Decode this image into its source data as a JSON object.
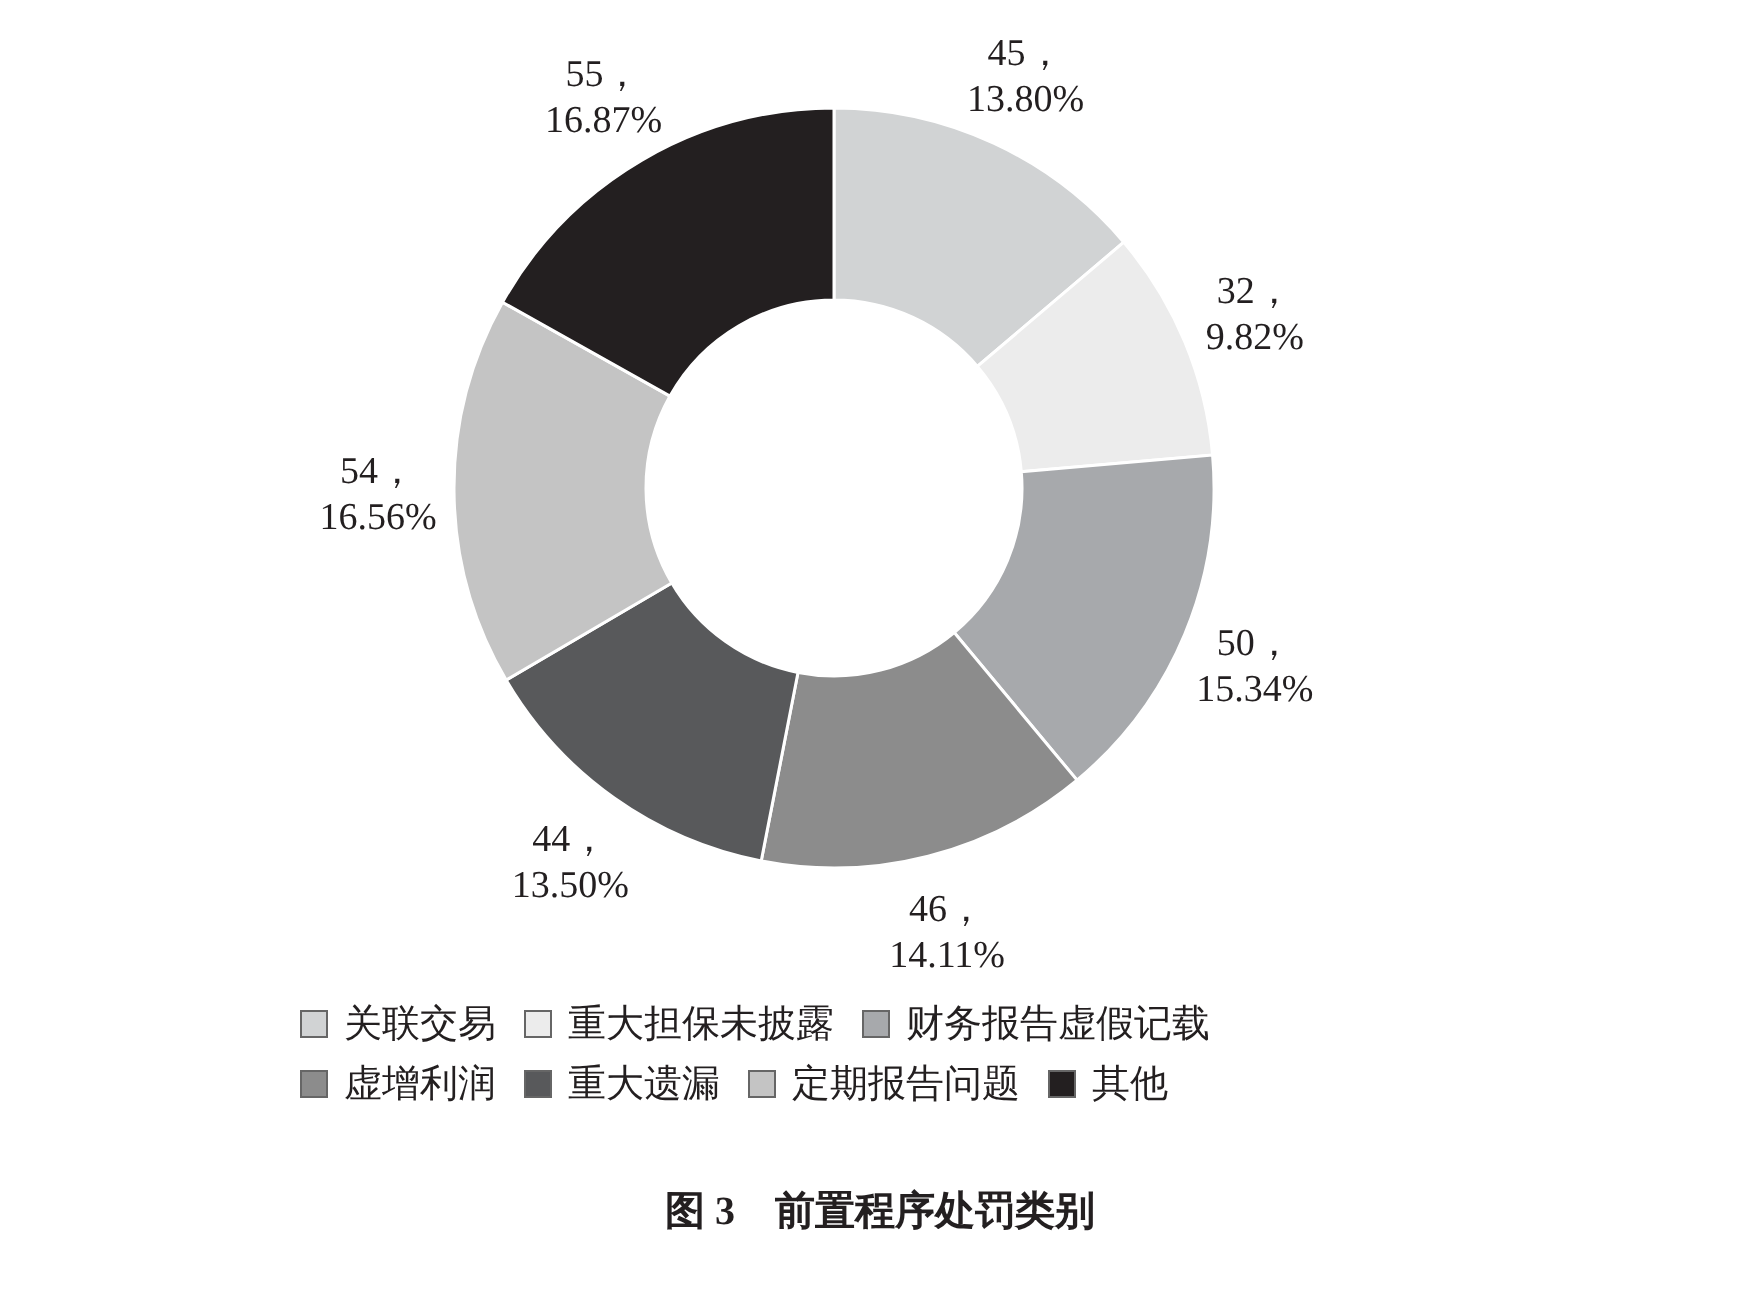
{
  "chart_data": {
    "type": "donut",
    "title": "图 3　前置程序处罚类别",
    "categories": [
      "关联交易",
      "重大担保未披露",
      "财务报告虚假记载",
      "虚增利润",
      "重大遗漏",
      "定期报告问题",
      "其他"
    ],
    "values": [
      45,
      32,
      50,
      46,
      44,
      54,
      55
    ],
    "colors": [
      "#d1d3d4",
      "#ececec",
      "#a7a9ac",
      "#8c8c8c",
      "#58595b",
      "#c4c4c4",
      "#231f20"
    ],
    "value_labels": [
      "45，\n13.80%",
      "32，\n9.82%",
      "50，\n15.34%",
      "46，\n14.11%",
      "44，\n13.50%",
      "54，\n16.56%",
      "55，\n16.87%"
    ],
    "legend": "bottom"
  }
}
